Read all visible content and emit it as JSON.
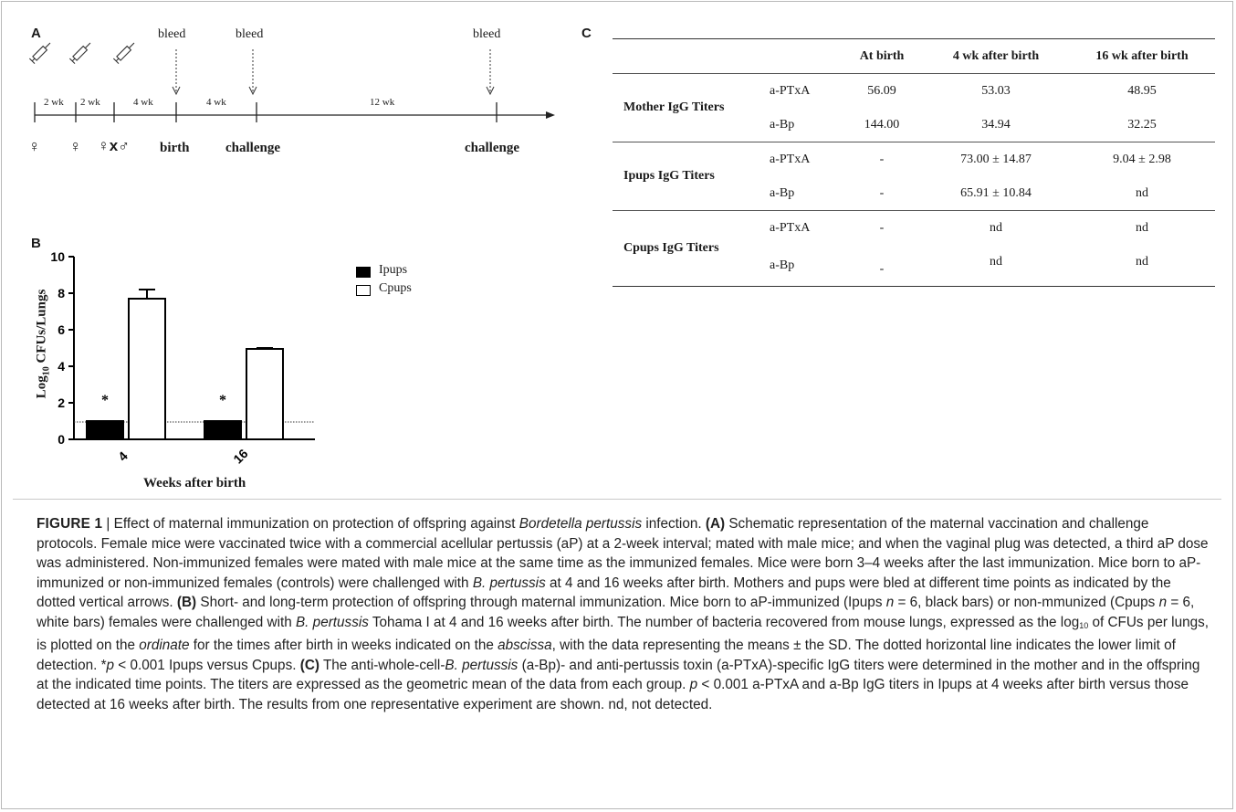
{
  "panelA": {
    "letter": "A",
    "bleed_labels": [
      "bleed",
      "bleed",
      "bleed"
    ],
    "intervals": [
      "2 wk",
      "2 wk",
      "4 wk",
      "4 wk",
      "12 wk"
    ],
    "bottom_labels": {
      "female1": "♀",
      "female2": "♀",
      "cross": "♀x♂",
      "birth": "birth",
      "challenge1": "challenge",
      "challenge2": "challenge"
    }
  },
  "panelB": {
    "letter": "B",
    "ylabel_main": "Log",
    "ylabel_sub": "10",
    "ylabel_rest": " CFUs/Lungs",
    "xlabel": "Weeks after birth",
    "yticks": [
      "0",
      "2",
      "4",
      "6",
      "8",
      "10"
    ],
    "xticks": [
      "4",
      "16"
    ],
    "legend": [
      "Ipups",
      "Cpups"
    ],
    "significance": [
      "*",
      "*"
    ]
  },
  "chart_data": {
    "type": "bar",
    "categories": [
      "4",
      "16"
    ],
    "series": [
      {
        "name": "Ipups",
        "values": [
          1.0,
          1.0
        ],
        "errors": [
          0,
          0
        ],
        "color": "#000000"
      },
      {
        "name": "Cpups",
        "values": [
          7.7,
          4.95
        ],
        "errors": [
          0.5,
          0.05
        ],
        "color": "#ffffff"
      }
    ],
    "xlabel": "Weeks after birth",
    "ylabel": "Log10 CFUs/Lungs",
    "ylim": [
      0,
      10
    ],
    "detection_limit": 0.95,
    "legend_position": "top-right"
  },
  "panelC": {
    "letter": "C",
    "headers": [
      "",
      "",
      "At birth",
      "4 wk after birth",
      "16 wk after birth"
    ],
    "rows": [
      {
        "group": "Mother IgG Titers",
        "antibody": "a-PTxA",
        "birth": "56.09",
        "wk4": "53.03",
        "wk16": "48.95"
      },
      {
        "group": "",
        "antibody": "a-Bp",
        "birth": "144.00",
        "wk4": "34.94",
        "wk16": "32.25"
      },
      {
        "group": "Ipups IgG Titers",
        "antibody": "a-PTxA",
        "birth": "-",
        "wk4": "73.00 ± 14.87",
        "wk16": "9.04  ± 2.98"
      },
      {
        "group": "",
        "antibody": "a-Bp",
        "birth": "-",
        "wk4": "65.91 ± 10.84",
        "wk16": "nd"
      },
      {
        "group": "Cpups IgG Titers",
        "antibody": "a-PTxA",
        "birth": "-",
        "wk4": "nd",
        "wk16": "nd"
      },
      {
        "group": "",
        "antibody": "a-Bp",
        "birth": "-",
        "wk4": "nd",
        "wk16": "nd"
      }
    ]
  },
  "caption": {
    "figure_label": "FIGURE 1",
    "separator": " | ",
    "title_pre": "Effect of maternal immunization on protection of offspring against ",
    "title_italic": "Bordetella pertussis",
    "title_post": " infection. ",
    "a_label": "(A)",
    "a_text": " Schematic representation of the maternal vaccination and challenge protocols. Female mice were vaccinated twice with a commercial acellular pertussis (aP) at a 2-week interval; mated with male mice; and when the vaginal plug was detected, a third aP dose was administered. Non-immunized females were mated with male mice at the same time as the immunized females. Mice were born 3–4 weeks after the last immunization. Mice born to aP-immunized or non-immunized females (controls) were challenged with ",
    "a_italic": "B. pertussis",
    "a_text2": " at 4 and 16 weeks after birth. Mothers and pups were bled at different time points as indicated by the dotted vertical arrows. ",
    "b_label": "(B)",
    "b_text1": " Short- and long-term protection of offspring through maternal immunization. Mice born to aP-immunized (Ipups ",
    "b_n1": "n",
    "b_text2": " = 6, black bars) or non-mmunized (Cpups ",
    "b_n2": "n",
    "b_text3": " = 6, white bars) females were challenged with ",
    "b_italic": "B. pertussis",
    "b_text4": " Tohama I at 4 and 16 weeks after birth. The number of bacteria recovered from mouse lungs, expressed as the log",
    "b_sub": "10",
    "b_text5": " of CFUs per lungs, is plotted on the ",
    "b_ordinate": "ordinate",
    "b_text6": " for the times after birth in weeks indicated on the ",
    "b_abscissa": "abscissa",
    "b_text7": ", with the data representing the means ± the SD. The dotted horizontal line indicates the lower limit of detection. *",
    "b_p": "p",
    "b_text8": " < 0.001 Ipups versus Cpups. ",
    "c_label": "(C)",
    "c_text1": " The anti-whole-cell-",
    "c_italic": "B. pertussis",
    "c_text2": " (a-Bp)- and anti-pertussis toxin (a-PTxA)-specific IgG titers were determined in the mother and in the offspring at the indicated time points. The titers are expressed as the geometric mean of the data from each group. ",
    "c_p": "p",
    "c_text3": " < 0.001 a-PTxA and a-Bp IgG titers in Ipups at 4 weeks after birth versus those detected at 16 weeks after birth. The results from one representative experiment are shown. nd, not detected."
  }
}
